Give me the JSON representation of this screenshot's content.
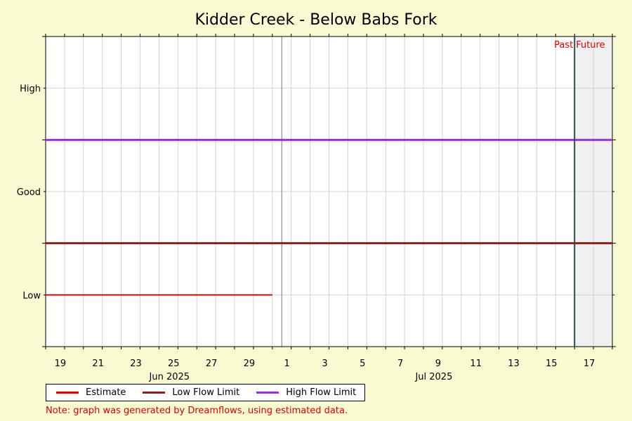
{
  "chart_data": {
    "type": "line",
    "title": "Kidder Creek - Below Babs Fork",
    "xlabel": "",
    "ylabel": "",
    "x_range": [
      "2025-06-18",
      "2025-07-18"
    ],
    "x_ticks": [
      "19",
      "21",
      "23",
      "25",
      "27",
      "29",
      "1",
      "3",
      "5",
      "7",
      "9",
      "11",
      "13",
      "15",
      "17"
    ],
    "month_labels": [
      {
        "label": "Jun 2025",
        "date": "2025-06-25"
      },
      {
        "label": "Jul 2025",
        "date": "2025-07-09"
      }
    ],
    "y_categories": [
      "Low",
      "Good",
      "High"
    ],
    "ylim": [
      0,
      3
    ],
    "grid": true,
    "now_date": "2025-07-16",
    "zones": {
      "past_label": "Past",
      "future_label": "Future",
      "future_color": "#f0f0f0"
    },
    "series": [
      {
        "name": "Estimate",
        "color": "#e00000",
        "x": [
          "2025-06-18",
          "2025-06-30"
        ],
        "y": [
          0.5,
          0.5
        ]
      },
      {
        "name": "Low Flow Limit",
        "color": "#8b2020",
        "x": [
          "2025-06-18",
          "2025-07-18"
        ],
        "y": [
          1,
          1
        ]
      },
      {
        "name": "High Flow Limit",
        "color": "#9b30d9",
        "x": [
          "2025-06-18",
          "2025-07-18"
        ],
        "y": [
          2,
          2
        ]
      }
    ],
    "legend_position": "bottom-left"
  },
  "note": "Note: graph was generated by Dreamflows, using estimated data."
}
